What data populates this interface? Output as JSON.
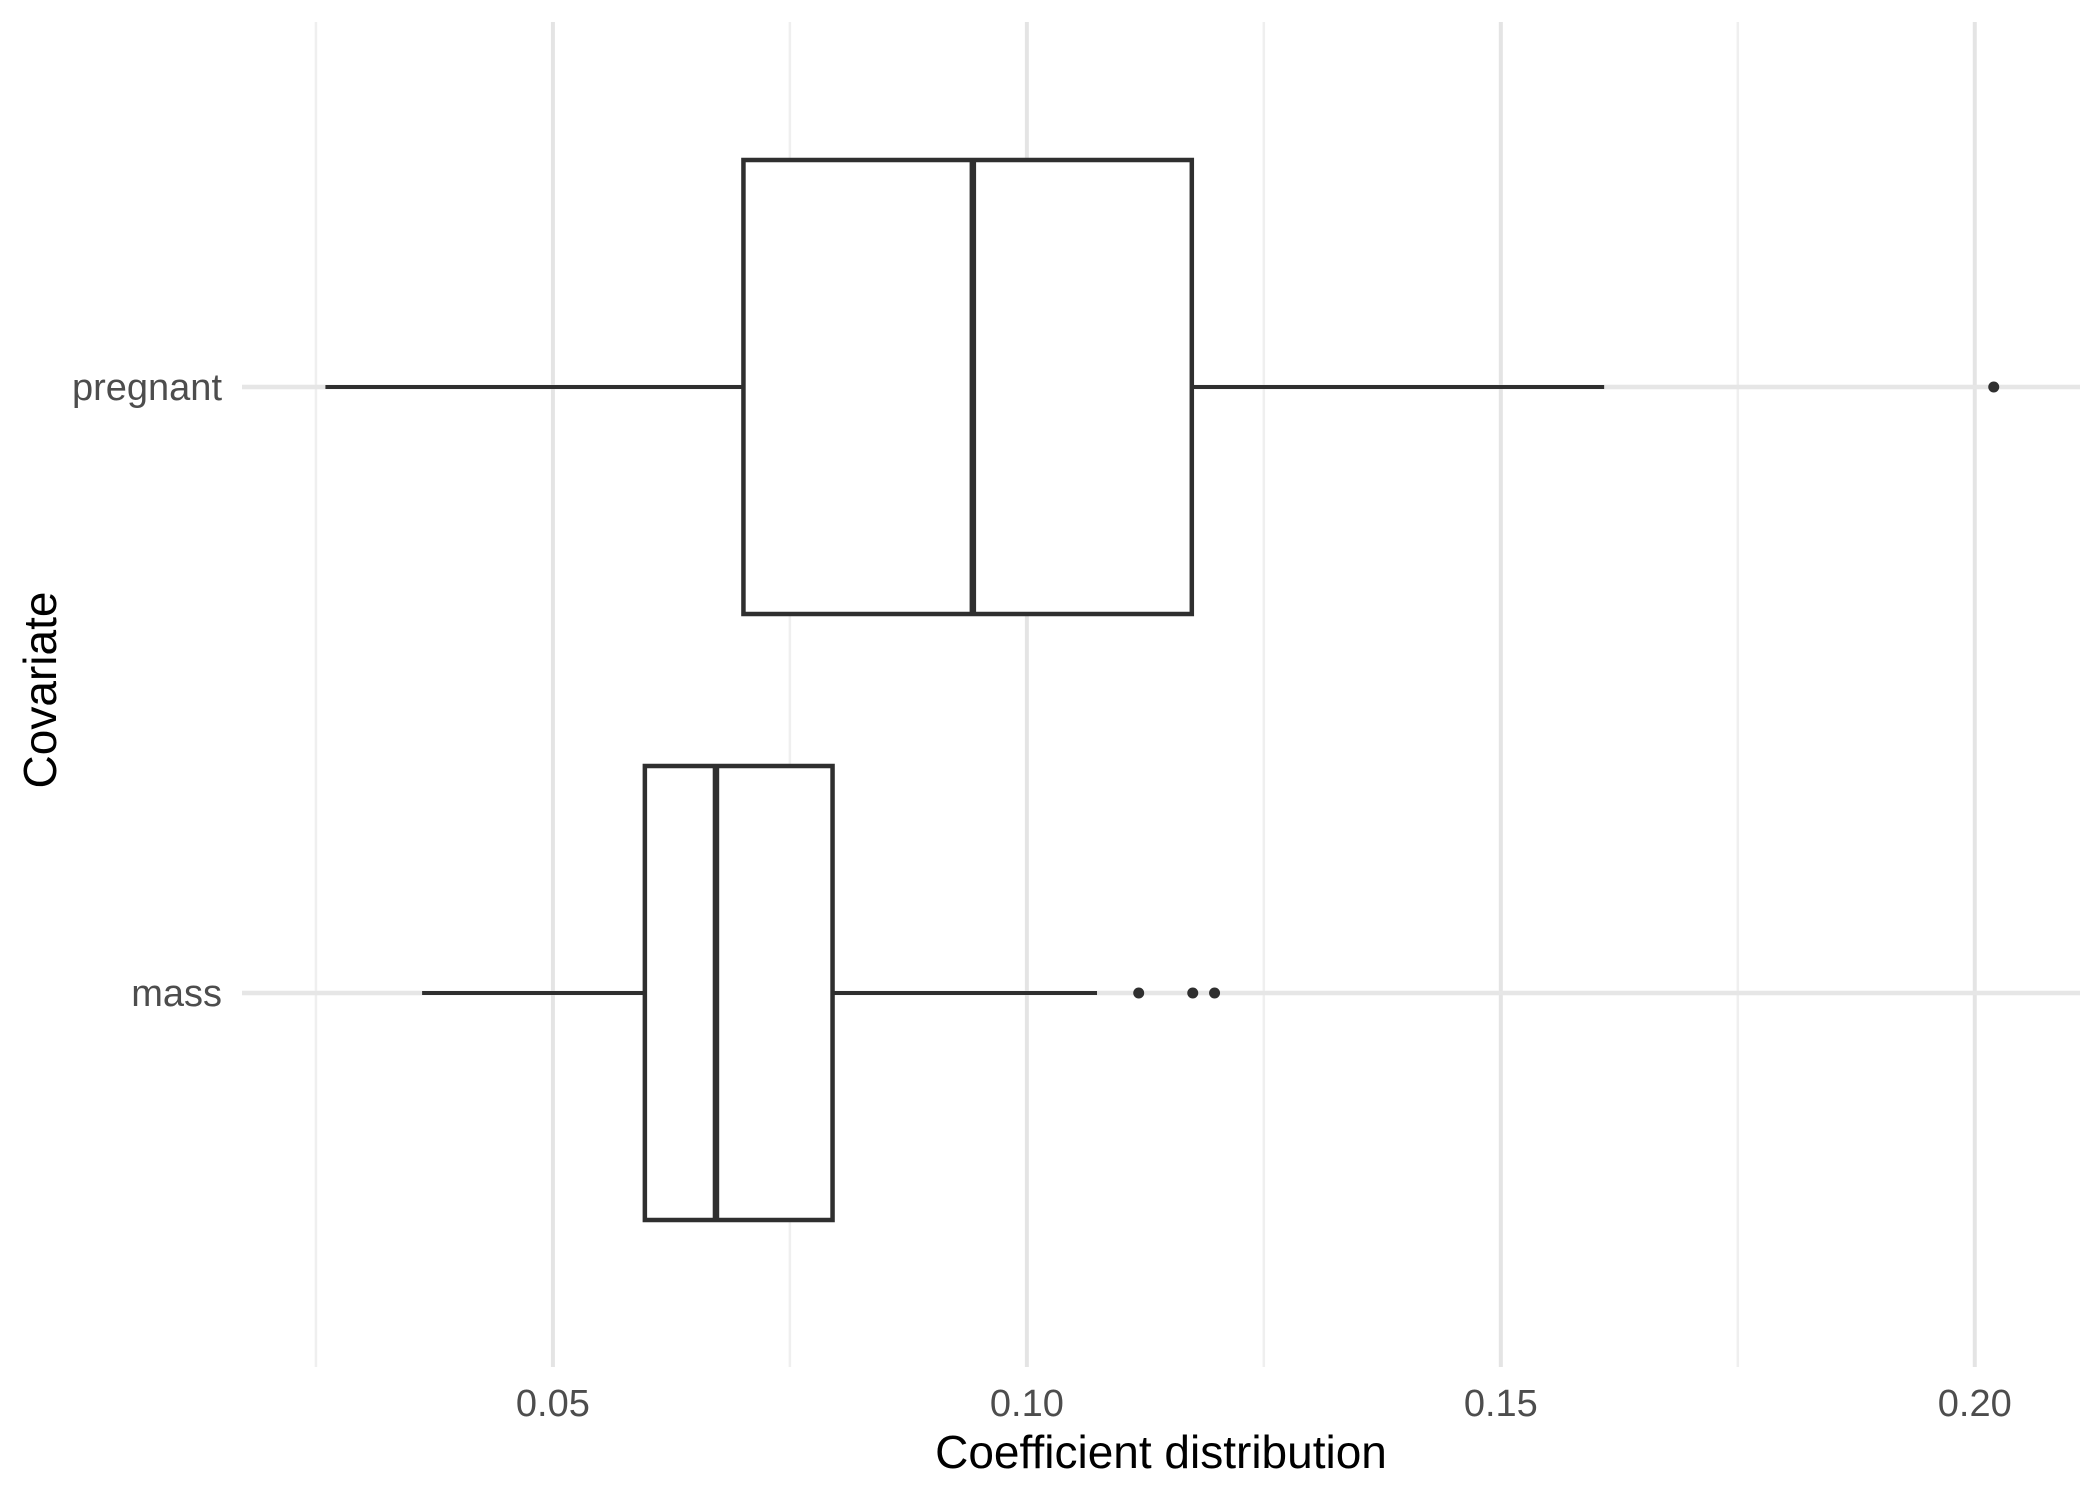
{
  "figure": {
    "background": "#ffffff"
  },
  "chart_data": {
    "type": "boxplot",
    "orientation": "horizontal",
    "title": "",
    "xlabel": "Coefficient distribution",
    "ylabel": "Covariate",
    "categories": [
      "pregnant",
      "mass"
    ],
    "series": [
      {
        "name": "pregnant",
        "whisker_low": 0.026,
        "q1": 0.0701,
        "median": 0.0943,
        "q3": 0.1174,
        "whisker_high": 0.1609,
        "outliers": [
          0.202
        ]
      },
      {
        "name": "mass",
        "whisker_low": 0.0362,
        "q1": 0.0597,
        "median": 0.0672,
        "q3": 0.0795,
        "whisker_high": 0.1074,
        "outliers": [
          0.1118,
          0.1175,
          0.1198
        ]
      }
    ],
    "xlim": [
      0.0172,
      0.2111
    ],
    "x_tick_values": [
      0.05,
      0.1,
      0.15,
      0.2
    ],
    "x_tick_labels": [
      "0.05",
      "0.10",
      "0.15",
      "0.20"
    ],
    "x_minor_tick_values": [
      0.025,
      0.075,
      0.125,
      0.175
    ],
    "grid": "vertical major+minor, horizontal major per category",
    "legend": "none",
    "style": {
      "box_fill": "#ffffff",
      "box_stroke": "#2f2f2f",
      "outlier_color": "#2f2f2f",
      "grid_major_color": "#e4e4e4",
      "grid_minor_color": "#efefef",
      "row_line_color": "#e6e6e6",
      "tick_label_color": "#4d4d4d",
      "axis_title_color": "#000000"
    }
  }
}
